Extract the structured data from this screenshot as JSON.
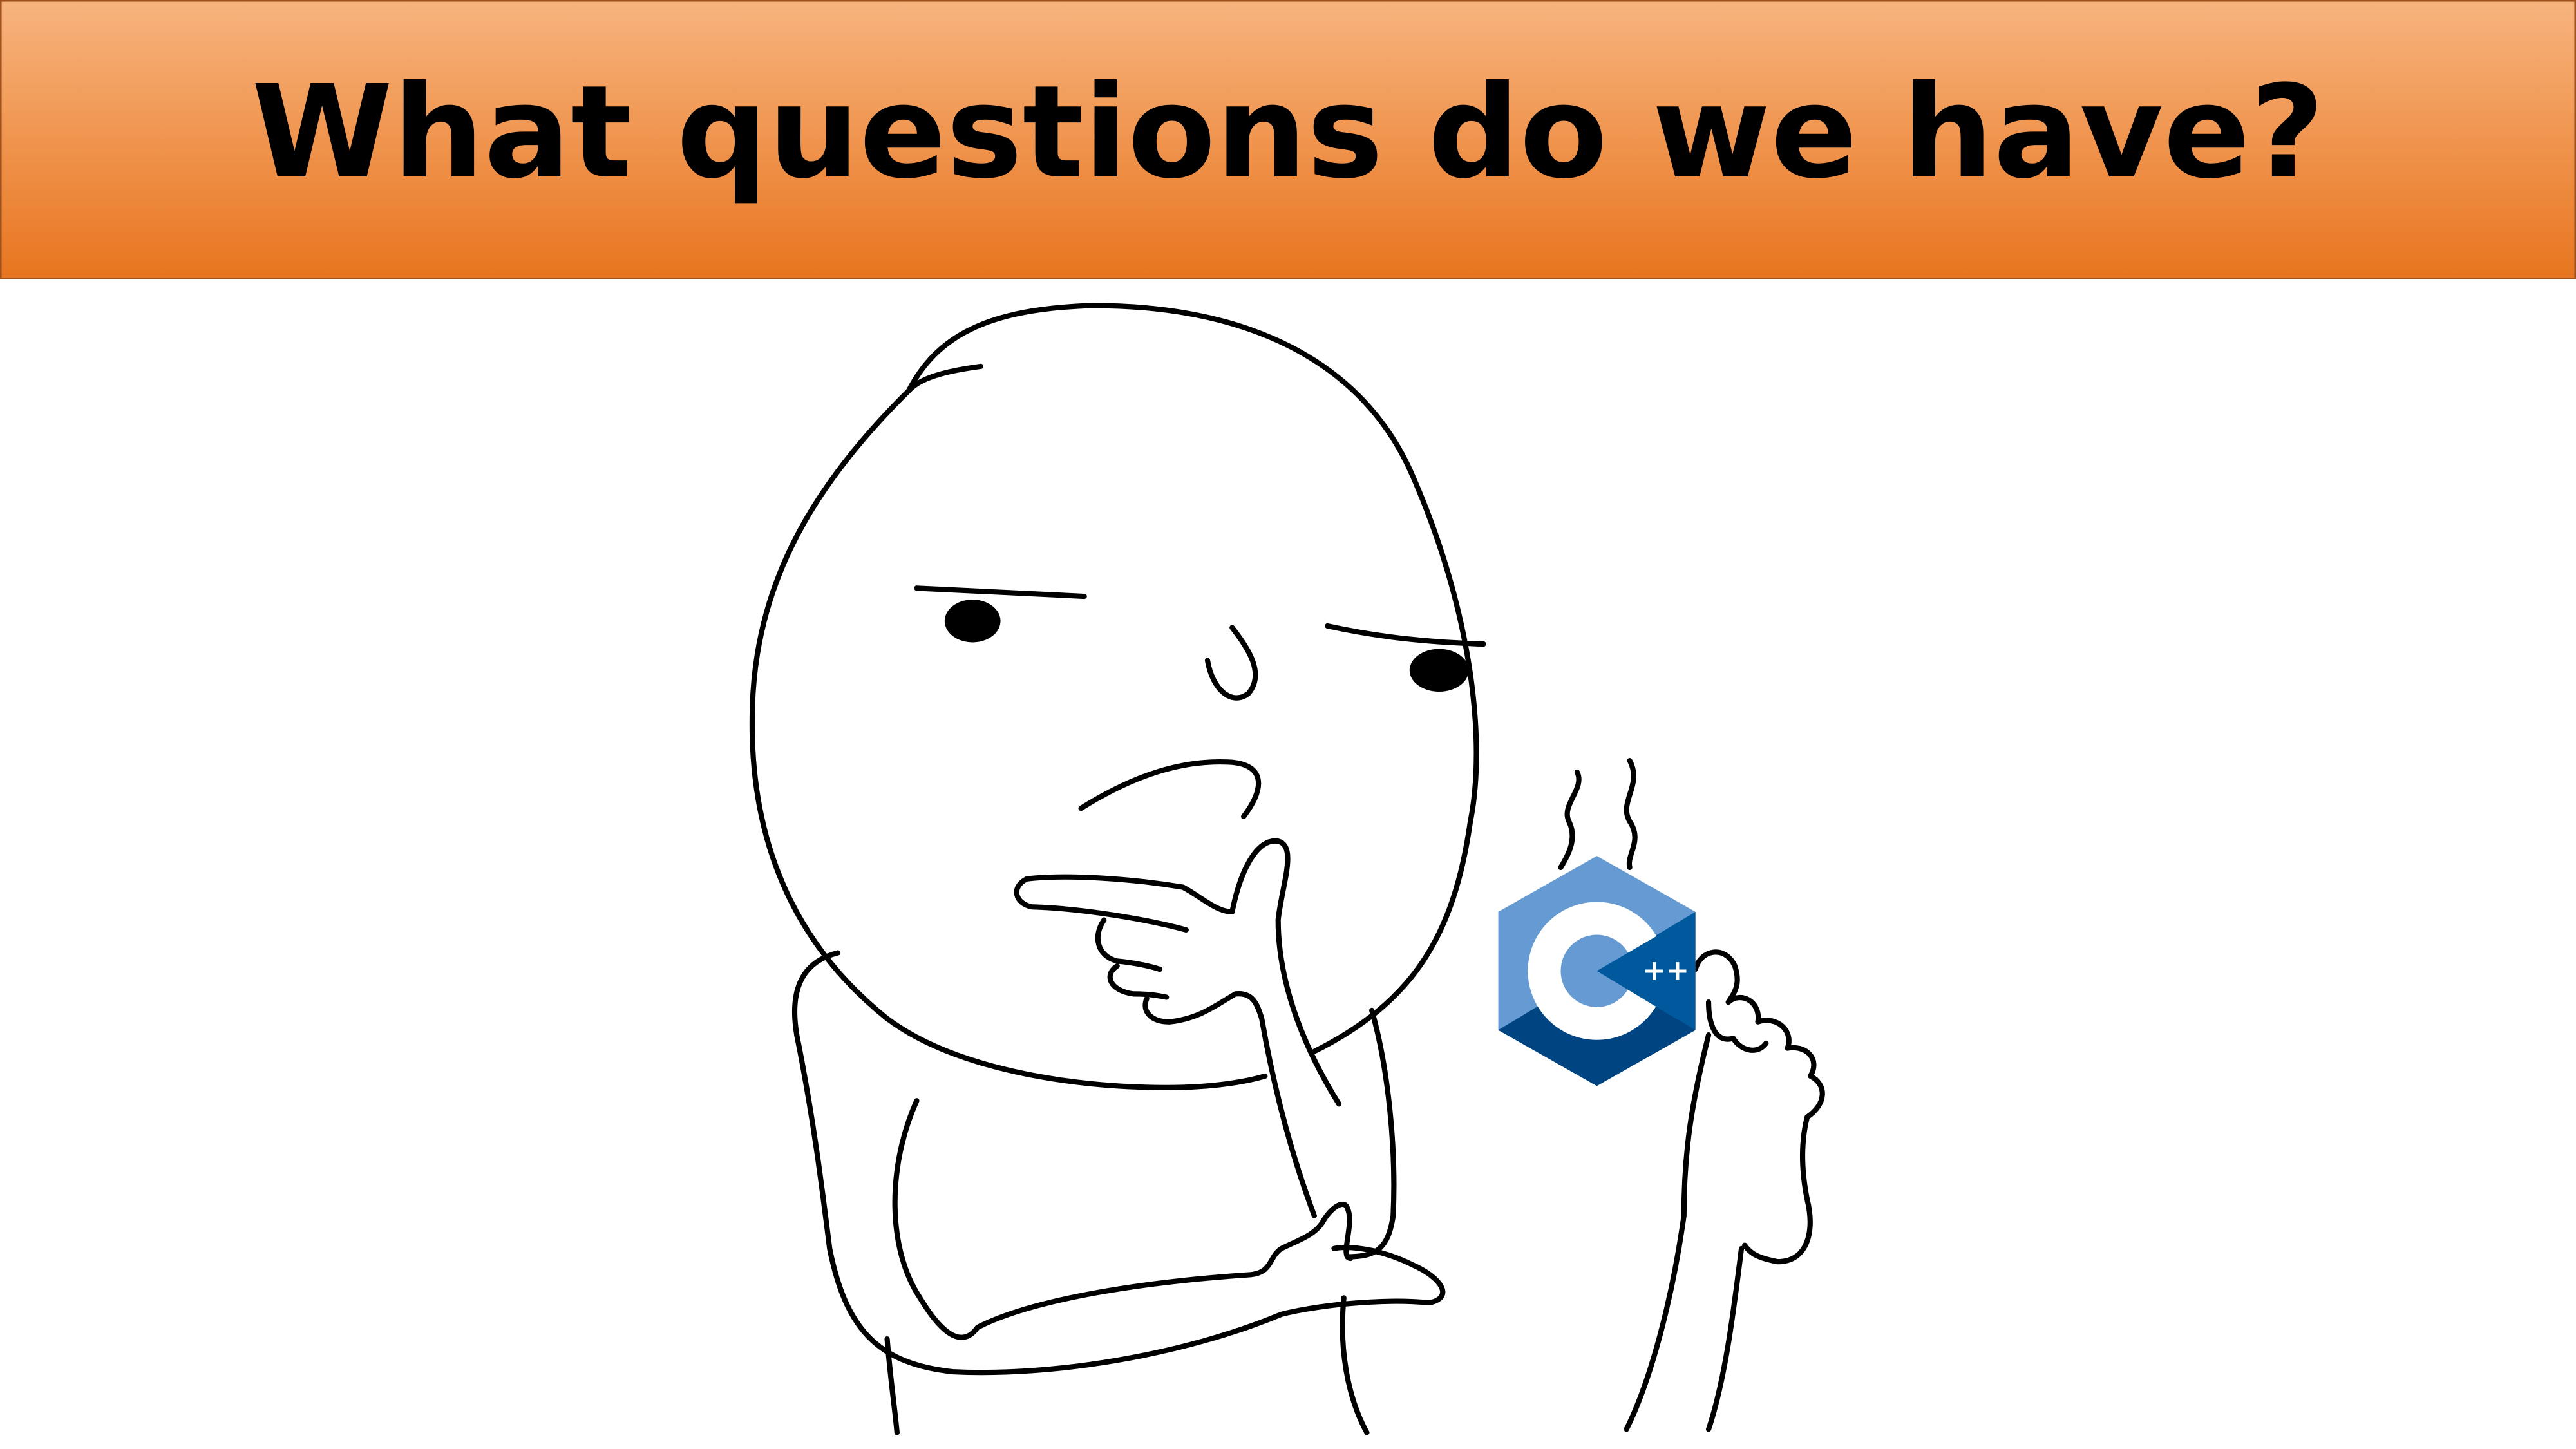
{
  "header": {
    "title": "What questions do we have?"
  },
  "logo": {
    "text": "++"
  }
}
